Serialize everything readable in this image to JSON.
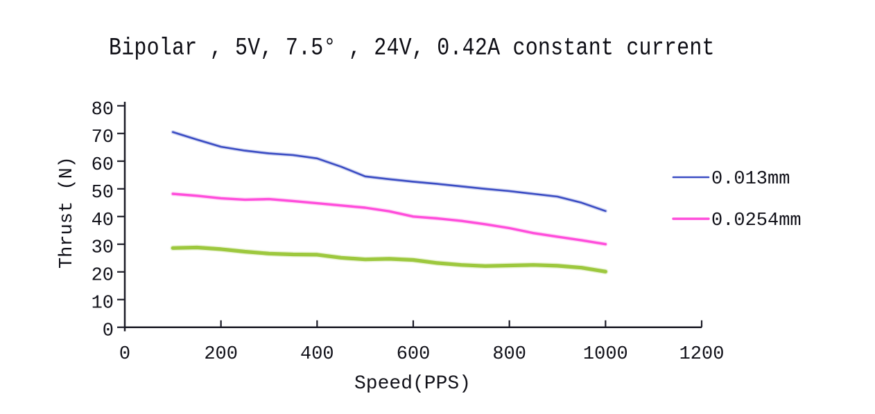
{
  "chart_data": {
    "type": "line",
    "title": "Bipolar , 5V, 7.5° , 24V, 0.42A constant current",
    "xlabel": "Speed(PPS)",
    "ylabel": "Thrust (N)",
    "xlim": [
      0,
      1200
    ],
    "ylim": [
      0,
      80
    ],
    "xticks": [
      0,
      200,
      400,
      600,
      800,
      1000,
      1200
    ],
    "yticks": [
      0,
      10,
      20,
      30,
      40,
      50,
      60,
      70,
      80
    ],
    "grid": false,
    "legend_position": "right",
    "axis_color": "#1b1b26",
    "text_color": "#101018",
    "x": [
      100,
      150,
      200,
      250,
      300,
      350,
      400,
      450,
      500,
      550,
      600,
      650,
      700,
      750,
      800,
      850,
      900,
      950,
      1000
    ],
    "series": [
      {
        "name": "0.013mm",
        "color": "#3a4cc3",
        "width": 2.6,
        "values": [
          70.5,
          67.8,
          65.2,
          63.8,
          62.8,
          62.2,
          61.0,
          58.0,
          54.5,
          53.5,
          52.6,
          51.8,
          50.9,
          50.0,
          49.2,
          48.2,
          47.2,
          45.0,
          42.0
        ]
      },
      {
        "name": "0.0254mm",
        "color": "#ff4ddb",
        "width": 3.4,
        "values": [
          48.2,
          47.5,
          46.6,
          46.1,
          46.3,
          45.6,
          44.8,
          44.0,
          43.2,
          41.9,
          40.0,
          39.3,
          38.4,
          37.2,
          35.8,
          34.0,
          32.7,
          31.4,
          30.0
        ]
      },
      {
        "name": "",
        "color": "#9dc83e",
        "width": 5.2,
        "values": [
          28.6,
          28.8,
          28.2,
          27.3,
          26.6,
          26.3,
          26.2,
          25.1,
          24.5,
          24.7,
          24.3,
          23.2,
          22.5,
          22.1,
          22.3,
          22.5,
          22.2,
          21.5,
          20.1
        ]
      }
    ],
    "legend": [
      {
        "label": "0.013mm",
        "color": "#3a4cc3"
      },
      {
        "label": "0.0254mm",
        "color": "#ff4ddb"
      }
    ]
  }
}
